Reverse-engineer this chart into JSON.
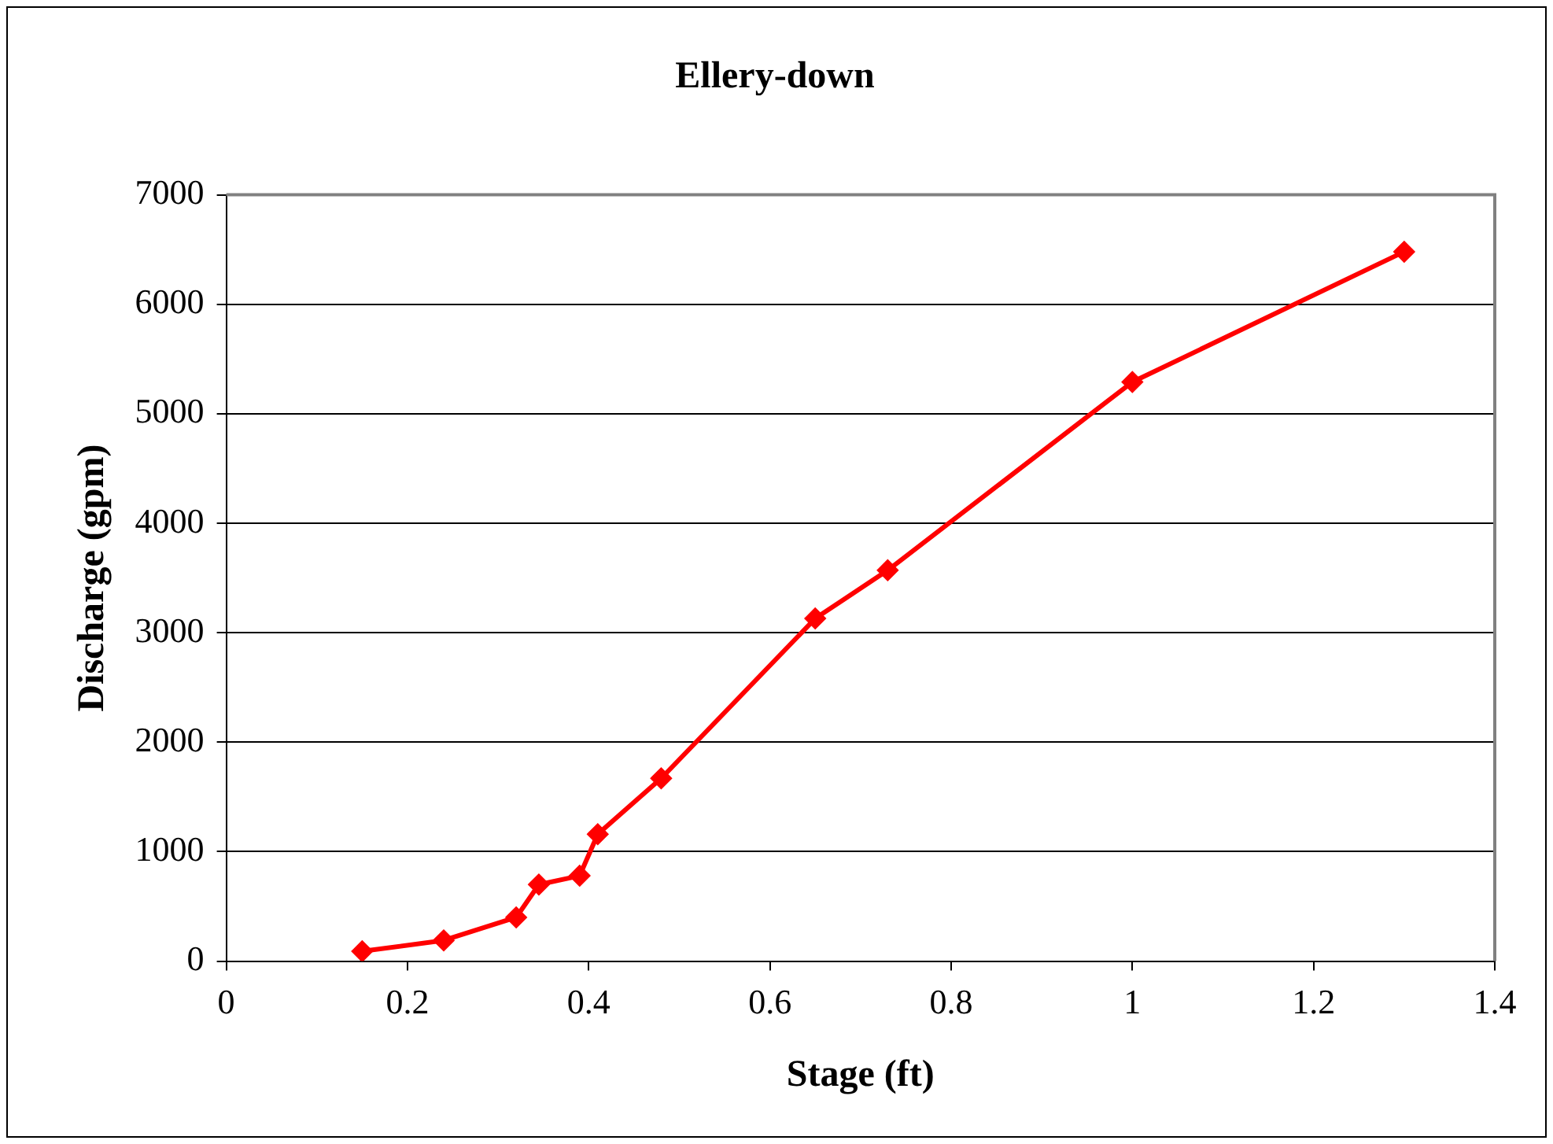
{
  "chart_data": {
    "type": "line",
    "title": "Ellery-down",
    "xlabel": "Stage (ft)",
    "ylabel": "Discharge (gpm)",
    "series": [
      {
        "color": "#ff0000",
        "x": [
          0.15,
          0.24,
          0.32,
          0.345,
          0.39,
          0.41,
          0.48,
          0.65,
          0.73,
          1.0,
          1.3
        ],
        "values": [
          90,
          190,
          400,
          700,
          780,
          1160,
          1670,
          3130,
          3570,
          5290,
          6480
        ]
      }
    ],
    "xlim": [
      0,
      1.4
    ],
    "xticks": [
      0,
      0.2,
      0.4,
      0.6,
      0.8,
      1,
      1.2,
      1.4
    ],
    "ylim": [
      0,
      7000
    ],
    "yticks": [
      0,
      1000,
      2000,
      3000,
      4000,
      5000,
      6000,
      7000
    ],
    "grid": "y",
    "legend": false,
    "marker": "diamond",
    "line_style": "solid"
  }
}
